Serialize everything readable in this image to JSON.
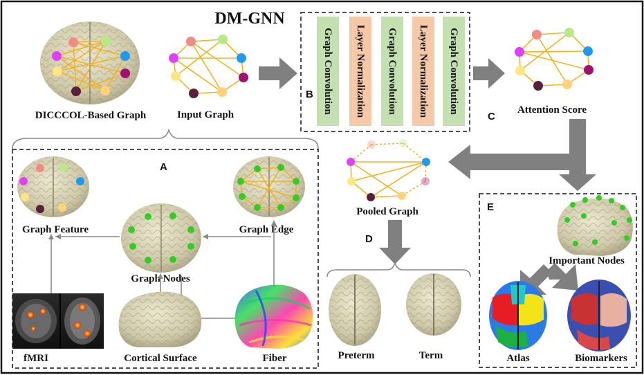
{
  "title": "DM-GNN",
  "labels": {
    "dicccol": "DICCCOL-Based Graph",
    "input_graph": "Input Graph",
    "attention_score": "Attention Score",
    "pooled_graph": "Pooled Graph",
    "graph_feature": "Graph Feature",
    "graph_edge": "Graph Edge",
    "graph_nodes": "Graph Nodes",
    "fmri": "fMRI",
    "cortical_surface": "Cortical Surface",
    "fiber": "Fiber",
    "preterm": "Preterm",
    "term": "Term",
    "important_nodes": "Important Nodes",
    "atlas": "Atlas",
    "biomarkers": "Biomarkers"
  },
  "sections": {
    "a": "A",
    "b": "B",
    "c": "C",
    "d": "D",
    "e": "E"
  },
  "layers": [
    {
      "text": "Graph Convolution",
      "kind": "conv"
    },
    {
      "text": "Layer Normalization",
      "kind": "norm"
    },
    {
      "text": "Graph Convolution",
      "kind": "conv"
    },
    {
      "text": "Layer Normalization",
      "kind": "norm"
    },
    {
      "text": "Graph Convolution",
      "kind": "conv"
    }
  ],
  "colors": {
    "conv": "#c4e0b0",
    "norm": "#f5c8a8",
    "edge": "#f2b320",
    "brain": "#d8d3b8",
    "node_green": "#33cc22",
    "arrow": "#808080",
    "node_palette": [
      "#f28b82",
      "#b8e986",
      "#e040fb",
      "#1e9bf0",
      "#a0106e",
      "#ffe680",
      "#5a1f3a",
      "#ffd27a"
    ]
  }
}
